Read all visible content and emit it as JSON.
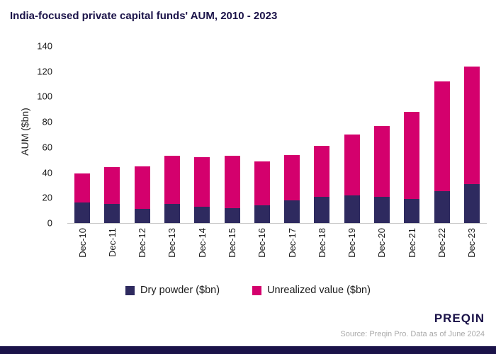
{
  "title": "India-focused private capital funds' AUM, 2010 - 2023",
  "chart_data": {
    "type": "bar",
    "stacked": true,
    "title": "India-focused private capital funds' AUM, 2010 - 2023",
    "categories": [
      "Dec-10",
      "Dec-11",
      "Dec-12",
      "Dec-13",
      "Dec-14",
      "Dec-15",
      "Dec-16",
      "Dec-17",
      "Dec-18",
      "Dec-19",
      "Dec-20",
      "Dec-21",
      "Dec-22",
      "Dec-23"
    ],
    "series": [
      {
        "name": "Dry powder ($bn)",
        "color": "#2e2a5f",
        "values": [
          16,
          15,
          11,
          15,
          13,
          12,
          14,
          18,
          21,
          22,
          21,
          19,
          25,
          31
        ]
      },
      {
        "name": "Unrealized value ($bn)",
        "color": "#d4006d",
        "values": [
          23,
          29,
          34,
          38,
          39,
          41,
          35,
          36,
          40,
          48,
          56,
          69,
          87,
          93
        ]
      }
    ],
    "totals": [
      39,
      44,
      45,
      53,
      52,
      53,
      49,
      54,
      61,
      70,
      77,
      88,
      112,
      124
    ],
    "xlabel": "",
    "ylabel": "AUM ($bn)",
    "ylim": [
      0,
      140
    ],
    "ytick_step": 20,
    "grid": false,
    "legend_position": "bottom"
  },
  "footer": {
    "brand": "PREQIN",
    "source": "Source: Preqin Pro. Data as of June 2024"
  },
  "colors": {
    "navy": "#1b1349",
    "dry_powder": "#2e2a5f",
    "unrealized": "#d4006d"
  }
}
